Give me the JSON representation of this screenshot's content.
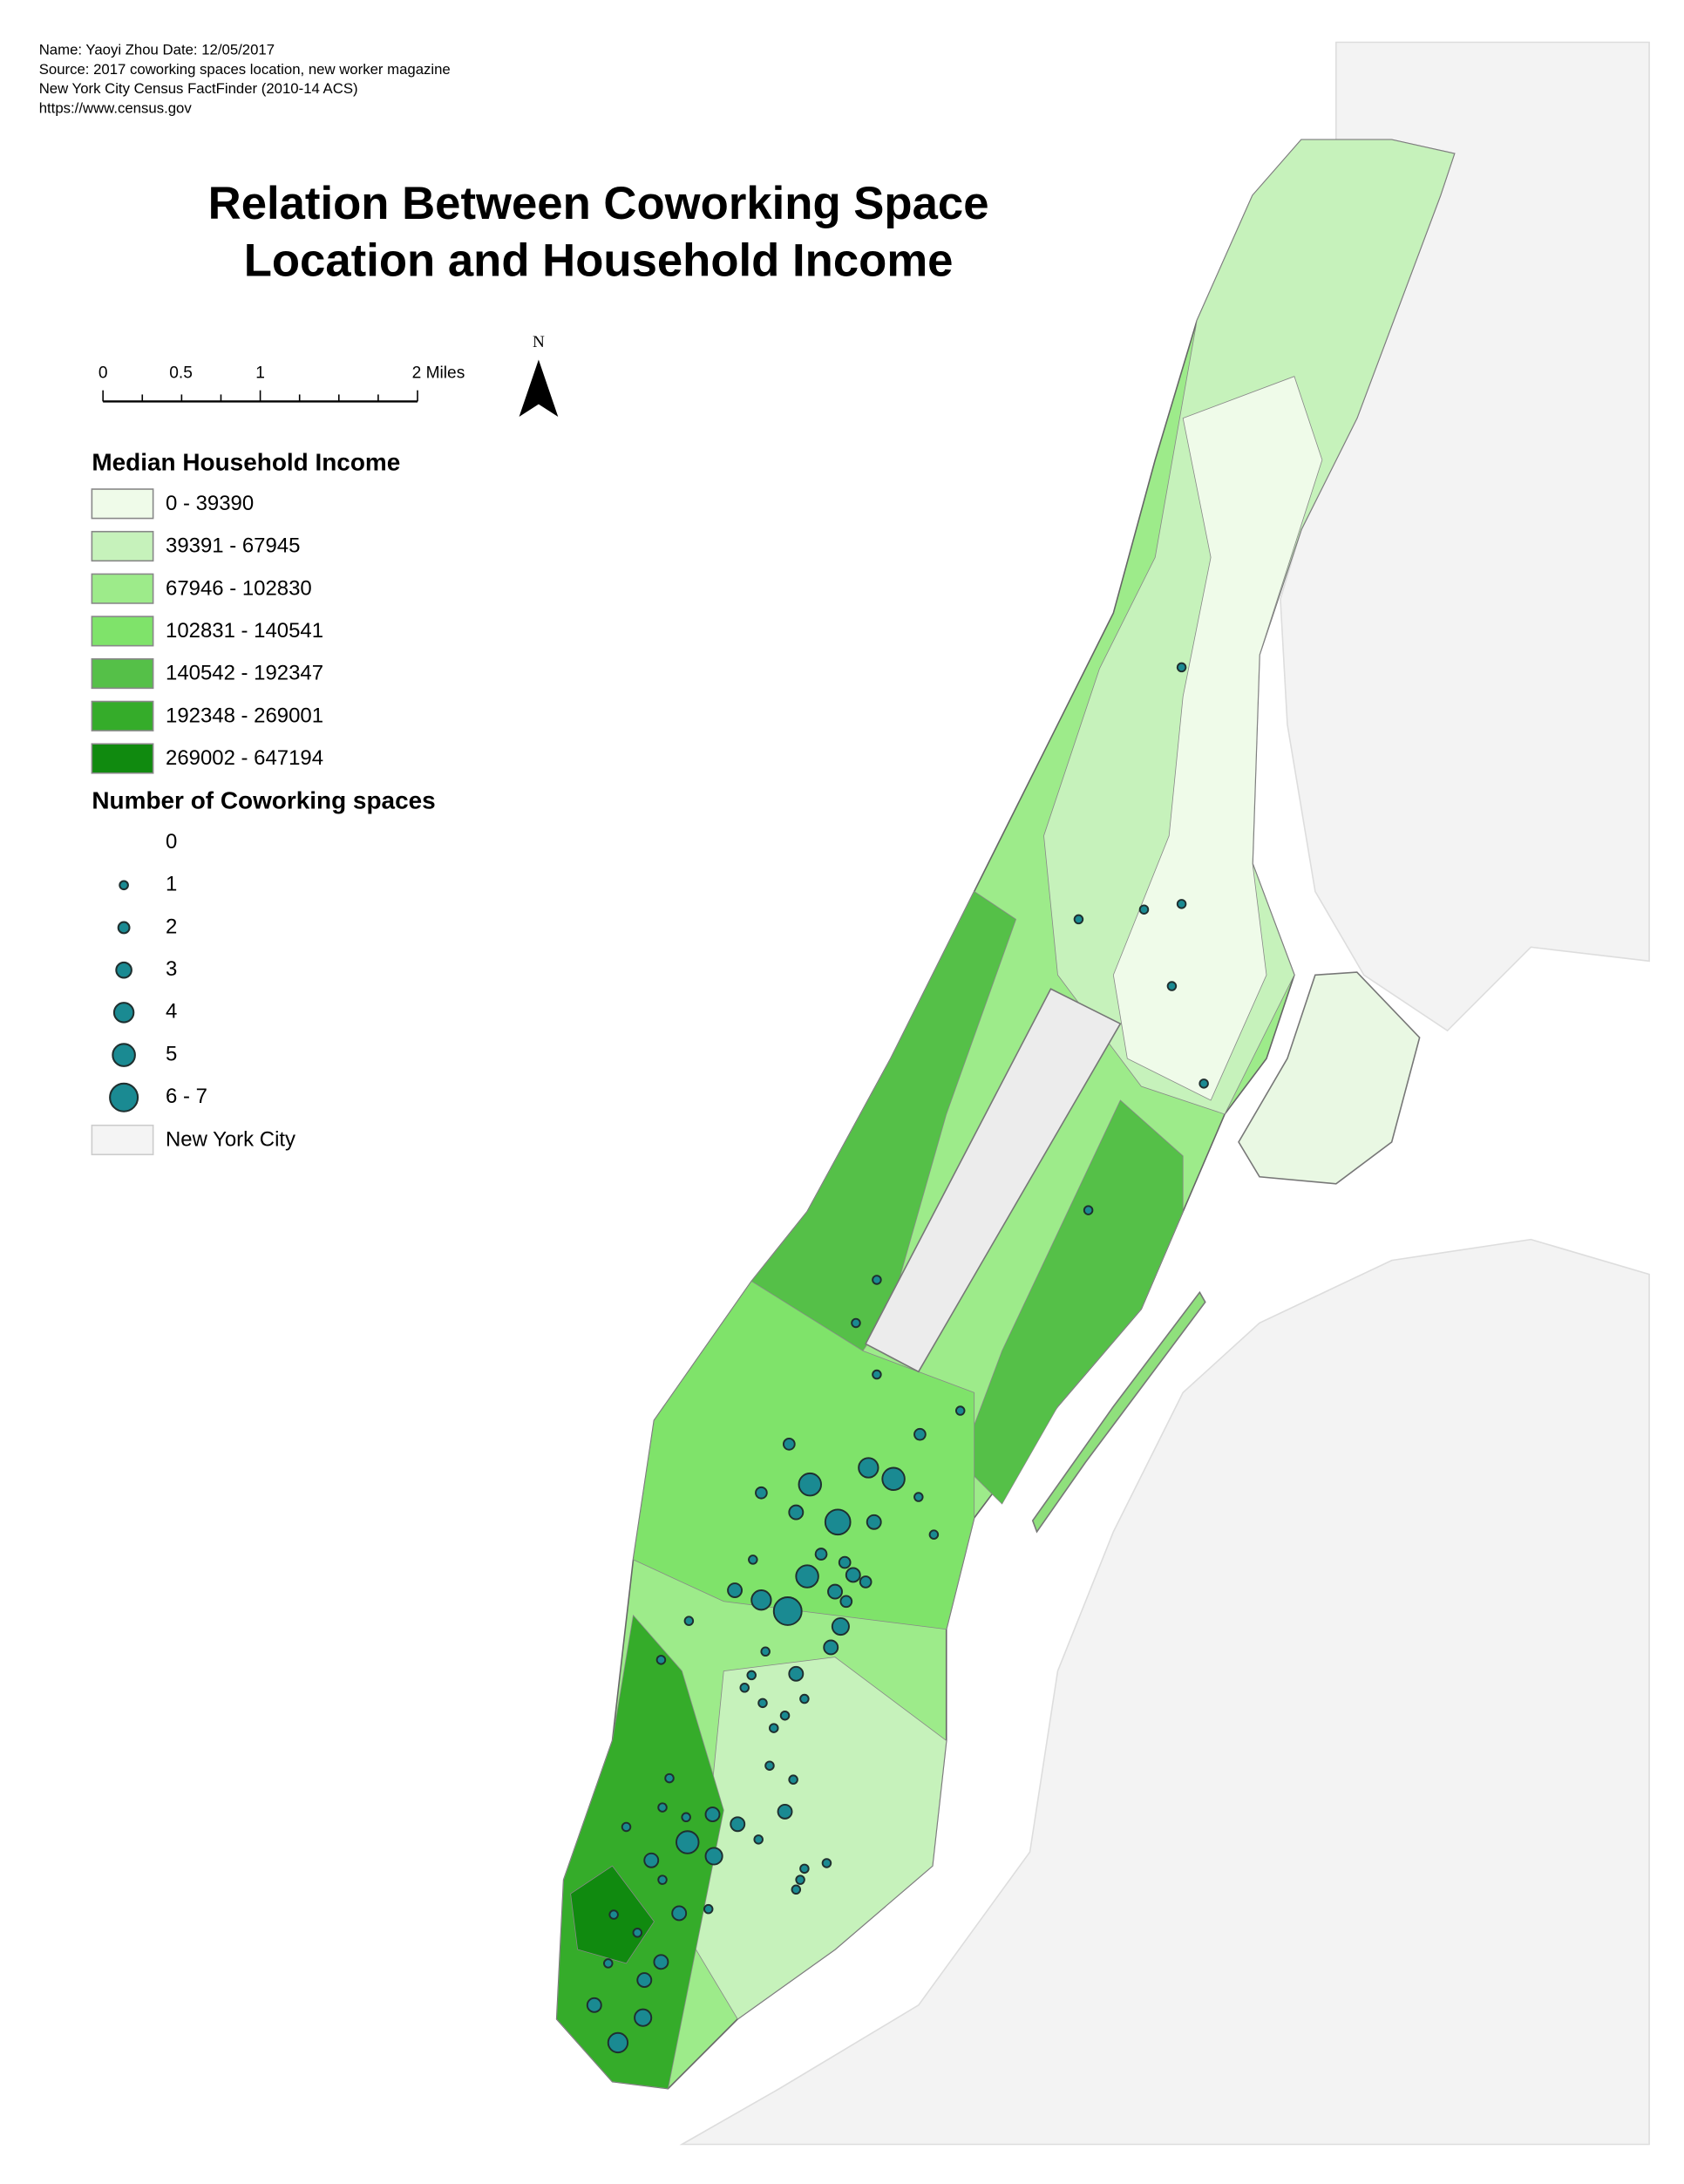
{
  "header": {
    "lines": [
      "Name: Yaoyi Zhou  Date: 12/05/2017",
      "Source: 2017 coworking spaces location, new worker magazine",
      "New York City Census FactFinder (2010-14 ACS)",
      "https://www.census.gov"
    ]
  },
  "title": [
    "Relation Between Coworking Space",
    "Location and Household Income"
  ],
  "scale_bar": {
    "labels": [
      "0",
      "0.5",
      "1",
      "2 Miles"
    ]
  },
  "north_arrow": "N",
  "income_legend": {
    "title": "Median Household Income",
    "items": [
      {
        "label": "0 - 39390",
        "color": "#effbe9"
      },
      {
        "label": "39391 - 67945",
        "color": "#c6f2bb"
      },
      {
        "label": "67946 - 102830",
        "color": "#9deb8a"
      },
      {
        "label": "102831 - 140541",
        "color": "#7fe36a"
      },
      {
        "label": "140542 - 192347",
        "color": "#55c048"
      },
      {
        "label": "192348 - 269001",
        "color": "#35ac2a"
      },
      {
        "label": "269002 - 647194",
        "color": "#108a0f"
      }
    ]
  },
  "coworking_legend": {
    "title": "Number of Coworking spaces",
    "items": [
      "0",
      "1",
      "2",
      "3",
      "4",
      "5",
      "6 - 7"
    ]
  },
  "nyc_legend": {
    "label": "New York City",
    "color": "#f4f4f4"
  }
}
